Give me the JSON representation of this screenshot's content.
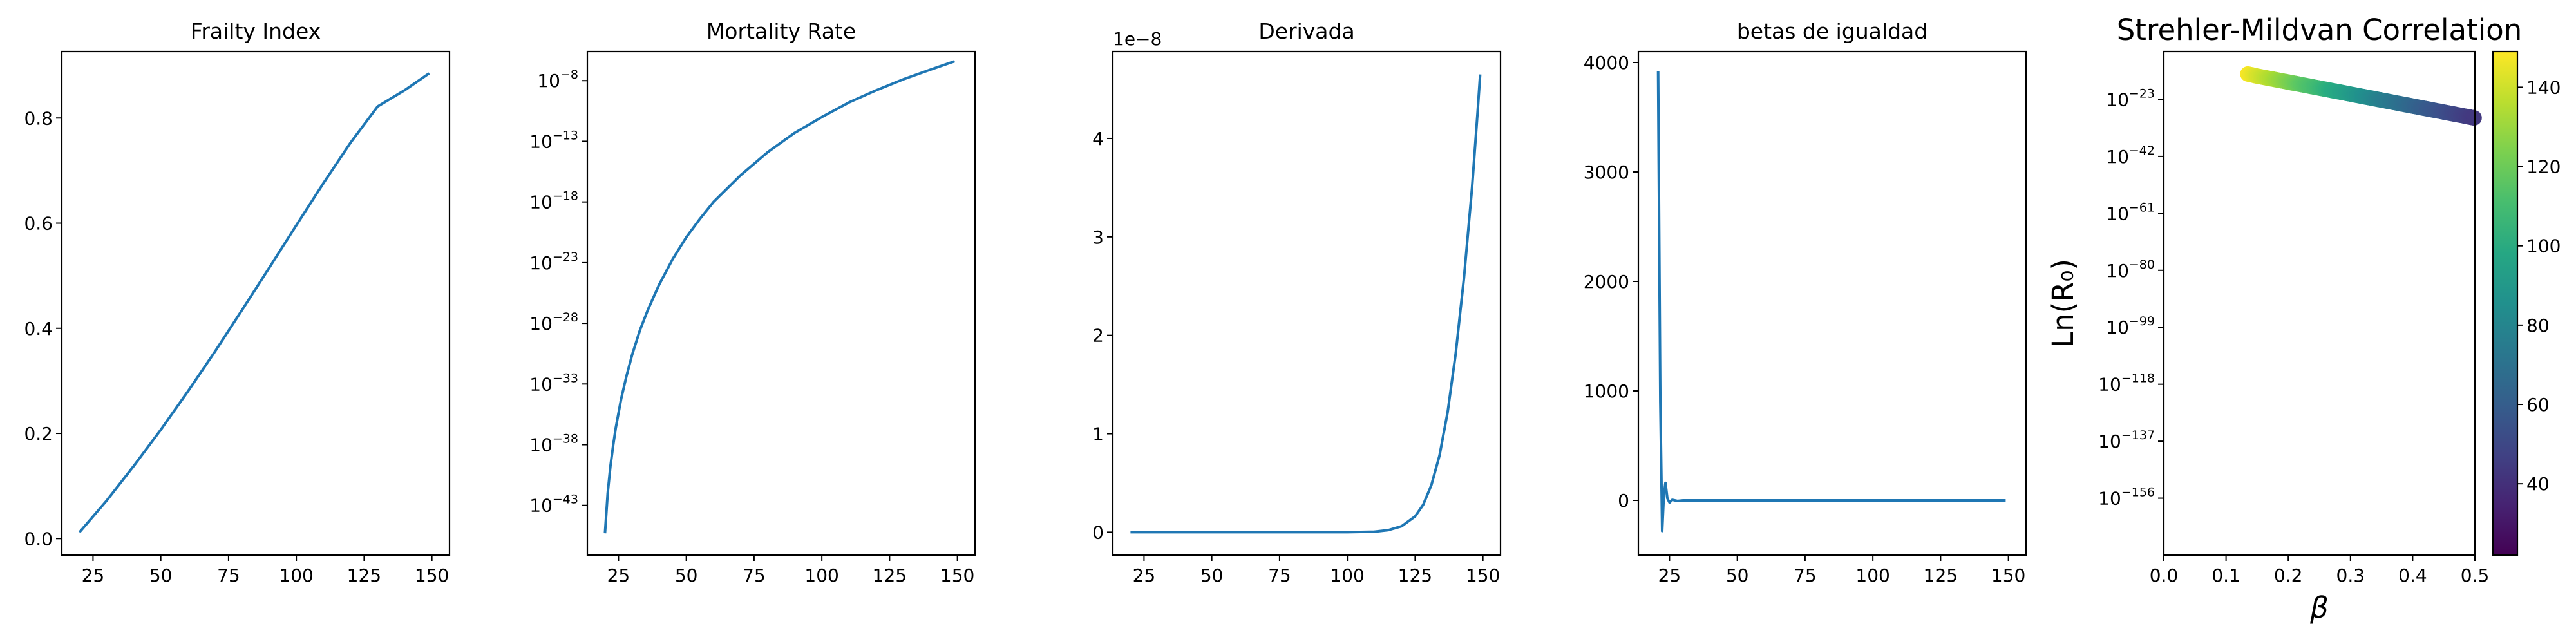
{
  "chart_data": [
    {
      "type": "line",
      "title": "Frailty Index",
      "xlabel": "",
      "ylabel": "",
      "xlim": [
        13.5,
        156.5
      ],
      "ylim": [
        -0.0315,
        0.9265
      ],
      "x_ticks": [
        25,
        50,
        75,
        100,
        125,
        150
      ],
      "y_ticks": [
        0.0,
        0.2,
        0.4,
        0.6,
        0.8
      ],
      "y_tick_labels": [
        "0.0",
        "0.2",
        "0.4",
        "0.6",
        "0.8"
      ],
      "grid": false,
      "series": [
        {
          "color": "#1f77b4",
          "x": [
            20,
            30,
            40,
            50,
            60,
            70,
            80,
            90,
            100,
            110,
            120,
            130,
            140,
            149
          ],
          "y": [
            0.012,
            0.072,
            0.138,
            0.207,
            0.28,
            0.356,
            0.435,
            0.515,
            0.596,
            0.676,
            0.753,
            0.822,
            0.853,
            0.885
          ]
        }
      ]
    },
    {
      "type": "line",
      "title": "Mortality Rate",
      "xlabel": "",
      "ylabel": "",
      "y_scale": "log",
      "xlim": [
        13.5,
        156.5
      ],
      "ylim_log10": [
        -47.1,
        -5.6
      ],
      "x_ticks": [
        25,
        50,
        75,
        100,
        125,
        150
      ],
      "y_ticks_log10": [
        -43,
        -38,
        -33,
        -28,
        -23,
        -18,
        -13,
        -8
      ],
      "y_tick_labels": [
        {
          "base": "10",
          "exp": "−43"
        },
        {
          "base": "10",
          "exp": "−38"
        },
        {
          "base": "10",
          "exp": "−33"
        },
        {
          "base": "10",
          "exp": "−28"
        },
        {
          "base": "10",
          "exp": "−23"
        },
        {
          "base": "10",
          "exp": "−18"
        },
        {
          "base": "10",
          "exp": "−13"
        },
        {
          "base": "10",
          "exp": "−8"
        }
      ],
      "grid": false,
      "series": [
        {
          "color": "#1f77b4",
          "x": [
            20,
            21,
            22,
            23,
            24,
            26,
            28,
            30,
            33,
            36,
            40,
            45,
            50,
            55,
            60,
            70,
            80,
            90,
            100,
            110,
            120,
            130,
            140,
            149
          ],
          "y_log10": [
            -45.3,
            -42.0,
            -39.8,
            -38.1,
            -36.6,
            -34.2,
            -32.3,
            -30.6,
            -28.5,
            -26.8,
            -24.8,
            -22.7,
            -20.9,
            -19.4,
            -18.0,
            -15.8,
            -13.9,
            -12.3,
            -11.0,
            -9.8,
            -8.8,
            -7.9,
            -7.1,
            -6.4
          ]
        }
      ]
    },
    {
      "type": "line",
      "title": "Derivada",
      "xlabel": "",
      "ylabel": "",
      "offset_text": "1e−8",
      "xlim": [
        13.5,
        156.5
      ],
      "ylim": [
        -0.233,
        4.883
      ],
      "x_ticks": [
        25,
        50,
        75,
        100,
        125,
        150
      ],
      "y_ticks": [
        0,
        1,
        2,
        3,
        4
      ],
      "y_tick_labels": [
        "0",
        "1",
        "2",
        "3",
        "4"
      ],
      "grid": false,
      "series": [
        {
          "color": "#1f77b4",
          "x": [
            20,
            100,
            110,
            115,
            120,
            125,
            128,
            131,
            134,
            137,
            140,
            143,
            146,
            148,
            149
          ],
          "y": [
            0.0,
            0.0,
            0.005,
            0.02,
            0.06,
            0.16,
            0.28,
            0.48,
            0.78,
            1.22,
            1.82,
            2.58,
            3.5,
            4.25,
            4.65
          ]
        }
      ]
    },
    {
      "type": "line",
      "title": "betas de igualdad",
      "xlabel": "",
      "ylabel": "",
      "xlim": [
        13.5,
        156.5
      ],
      "ylim": [
        -500,
        4100
      ],
      "x_ticks": [
        25,
        50,
        75,
        100,
        125,
        150
      ],
      "y_ticks": [
        0,
        1000,
        2000,
        3000,
        4000
      ],
      "y_tick_labels": [
        "0",
        "1000",
        "2000",
        "3000",
        "4000"
      ],
      "grid": false,
      "series": [
        {
          "color": "#1f77b4",
          "x": [
            20.8,
            21.6,
            22.3,
            22.9,
            23.5,
            24.2,
            25.0,
            26.0,
            28,
            30,
            40,
            60,
            100,
            149
          ],
          "y": [
            3920,
            900,
            -280,
            50,
            160,
            20,
            -20,
            5,
            -5,
            0,
            0,
            0,
            0,
            0
          ]
        }
      ]
    },
    {
      "type": "scatter",
      "title": "Strehler-Mildvan Correlation",
      "xlabel": "β",
      "ylabel": "Ln(R₀)",
      "y_scale": "log",
      "xlim": [
        0.0,
        0.5
      ],
      "ylim_log10": [
        -175,
        -7
      ],
      "x_ticks": [
        0.0,
        0.1,
        0.2,
        0.3,
        0.4,
        0.5
      ],
      "x_tick_labels": [
        "0.0",
        "0.1",
        "0.2",
        "0.3",
        "0.4",
        "0.5"
      ],
      "y_ticks_log10": [
        -156,
        -137,
        -118,
        -99,
        -80,
        -61,
        -42,
        -23
      ],
      "y_tick_labels": [
        {
          "base": "10",
          "exp": "−156"
        },
        {
          "base": "10",
          "exp": "−137"
        },
        {
          "base": "10",
          "exp": "−118"
        },
        {
          "base": "10",
          "exp": "−99"
        },
        {
          "base": "10",
          "exp": "−80"
        },
        {
          "base": "10",
          "exp": "−61"
        },
        {
          "base": "10",
          "exp": "−42"
        },
        {
          "base": "10",
          "exp": "−23"
        }
      ],
      "grid": false,
      "colormap": "viridis",
      "colorbar": {
        "range": [
          22,
          149
        ],
        "ticks": [
          40,
          60,
          80,
          100,
          120,
          140
        ]
      },
      "points": {
        "beta": [
          0.135,
          0.15,
          0.17,
          0.19,
          0.21,
          0.23,
          0.25,
          0.27,
          0.29,
          0.31,
          0.33,
          0.35,
          0.37,
          0.39,
          0.41,
          0.43,
          0.45,
          0.47,
          0.49,
          0.5
        ],
        "y_log10": [
          -14.5,
          -15.2,
          -16.0,
          -16.8,
          -17.6,
          -18.4,
          -19.2,
          -20.0,
          -20.8,
          -21.6,
          -22.4,
          -23.2,
          -24.0,
          -24.8,
          -25.6,
          -26.4,
          -27.2,
          -28.0,
          -28.8,
          -29.2
        ],
        "color_value": [
          148,
          142,
          135,
          128,
          121,
          114,
          108,
          101,
          95,
          89,
          83,
          77,
          72,
          67,
          62,
          57,
          53,
          49,
          45,
          43
        ]
      }
    }
  ]
}
